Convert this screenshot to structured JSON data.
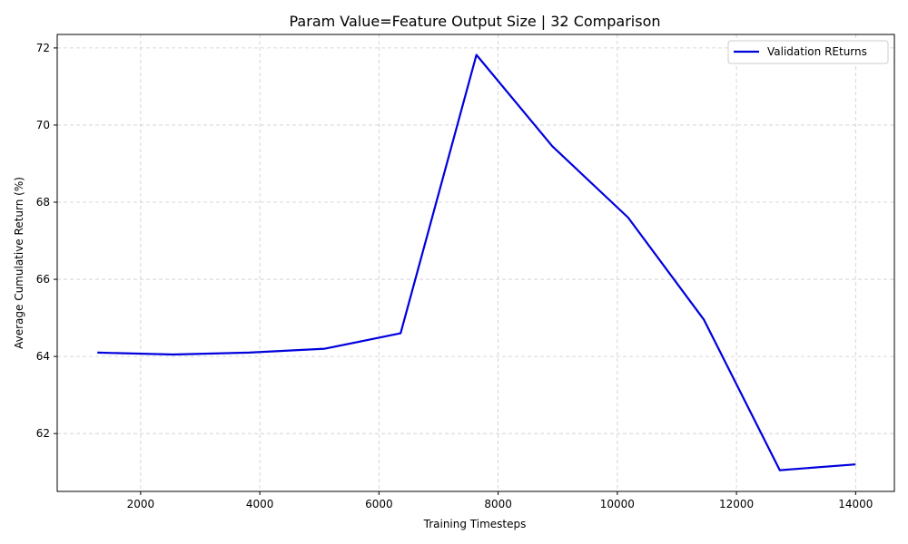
{
  "chart_data": {
    "type": "line",
    "title": "Param Value=Feature Output Size | 32 Comparison",
    "xlabel": "Training Timesteps",
    "ylabel": "Average Cumulative Return (%)",
    "xlim": [
      600,
      14650
    ],
    "ylim": [
      60.5,
      72.35
    ],
    "xticks": [
      2000,
      4000,
      6000,
      8000,
      10000,
      12000,
      14000
    ],
    "yticks": [
      62,
      64,
      66,
      68,
      70,
      72
    ],
    "grid": true,
    "legend_position": "top-right",
    "series": [
      {
        "name": "Validation REturns",
        "color": "#0000dd",
        "x": [
          1273,
          2545,
          3818,
          5091,
          6364,
          7636,
          8909,
          10182,
          11455,
          12727,
          14000
        ],
        "y": [
          64.1,
          64.05,
          64.1,
          64.2,
          64.6,
          71.82,
          69.45,
          67.6,
          64.95,
          61.05,
          61.2
        ]
      }
    ]
  }
}
